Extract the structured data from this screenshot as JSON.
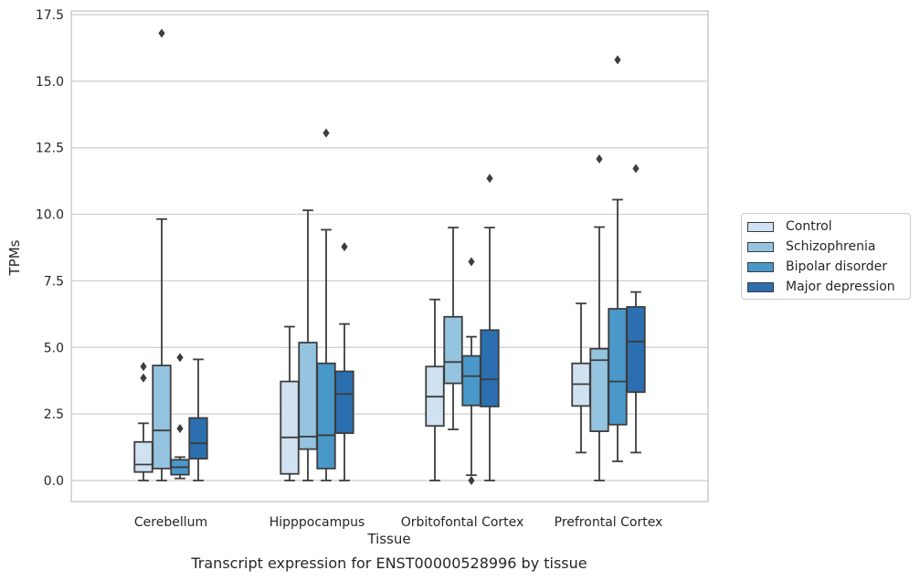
{
  "chart_data": {
    "type": "box",
    "title": "Transcript expression for ENST00000528996 by tissue",
    "xlabel": "Tissue",
    "ylabel": "TPMs",
    "ylim": [
      -0.8,
      17.6
    ],
    "yticks": [
      0.0,
      2.5,
      5.0,
      7.5,
      10.0,
      12.5,
      15.0,
      17.5
    ],
    "ytick_labels": [
      "0.0",
      "2.5",
      "5.0",
      "7.5",
      "10.0",
      "12.5",
      "15.0",
      "17.5"
    ],
    "categories": [
      "Cerebellum",
      "Hipppocampus",
      "Orbitofontal Cortex",
      "Prefrontal Cortex"
    ],
    "grid": "horizontal",
    "legend_position": "right",
    "series": [
      {
        "name": "Control",
        "color": "#d0e1f2",
        "boxes": [
          {
            "whislo": 0.0,
            "q1": 0.32,
            "med": 0.6,
            "q3": 1.45,
            "whishi": 2.15,
            "fliers": [
              3.85,
              4.28
            ]
          },
          {
            "whislo": 0.0,
            "q1": 0.25,
            "med": 1.62,
            "q3": 3.72,
            "whishi": 5.78,
            "fliers": []
          },
          {
            "whislo": 0.0,
            "q1": 2.05,
            "med": 3.15,
            "q3": 4.28,
            "whishi": 6.8,
            "fliers": []
          },
          {
            "whislo": 1.05,
            "q1": 2.8,
            "med": 3.62,
            "q3": 4.4,
            "whishi": 6.65,
            "fliers": []
          }
        ]
      },
      {
        "name": "Schizophrenia",
        "color": "#94c4df",
        "boxes": [
          {
            "whislo": 0.0,
            "q1": 0.45,
            "med": 1.88,
            "q3": 4.32,
            "whishi": 9.82,
            "fliers": [
              16.8
            ]
          },
          {
            "whislo": 0.0,
            "q1": 1.18,
            "med": 1.65,
            "q3": 5.18,
            "whishi": 10.15,
            "fliers": []
          },
          {
            "whislo": 1.92,
            "q1": 3.65,
            "med": 4.45,
            "q3": 6.15,
            "whishi": 9.5,
            "fliers": []
          },
          {
            "whislo": 0.0,
            "q1": 1.85,
            "med": 4.52,
            "q3": 4.95,
            "whishi": 9.52,
            "fliers": [
              12.08
            ]
          }
        ]
      },
      {
        "name": "Bipolar disorder",
        "color": "#4a98c9",
        "boxes": [
          {
            "whislo": 0.08,
            "q1": 0.22,
            "med": 0.5,
            "q3": 0.78,
            "whishi": 0.88,
            "fliers": [
              1.95,
              4.62
            ]
          },
          {
            "whislo": 0.0,
            "q1": 0.45,
            "med": 1.7,
            "q3": 4.4,
            "whishi": 9.42,
            "fliers": [
              13.05
            ]
          },
          {
            "whislo": 0.2,
            "q1": 2.82,
            "med": 3.92,
            "q3": 4.68,
            "whishi": 5.4,
            "fliers": [
              8.22,
              0.0
            ]
          },
          {
            "whislo": 0.72,
            "q1": 2.1,
            "med": 3.72,
            "q3": 6.45,
            "whishi": 10.55,
            "fliers": [
              15.8
            ]
          }
        ]
      },
      {
        "name": "Major depression",
        "color": "#2c6fb0",
        "boxes": [
          {
            "whislo": 0.0,
            "q1": 0.82,
            "med": 1.4,
            "q3": 2.35,
            "whishi": 4.55,
            "fliers": []
          },
          {
            "whislo": 0.0,
            "q1": 1.78,
            "med": 3.25,
            "q3": 4.1,
            "whishi": 5.88,
            "fliers": [
              8.78
            ]
          },
          {
            "whislo": 0.0,
            "q1": 2.78,
            "med": 3.8,
            "q3": 5.65,
            "whishi": 9.5,
            "fliers": [
              11.35
            ]
          },
          {
            "whislo": 1.05,
            "q1": 3.32,
            "med": 5.22,
            "q3": 6.52,
            "whishi": 7.08,
            "fliers": [
              11.72
            ]
          }
        ]
      }
    ]
  }
}
